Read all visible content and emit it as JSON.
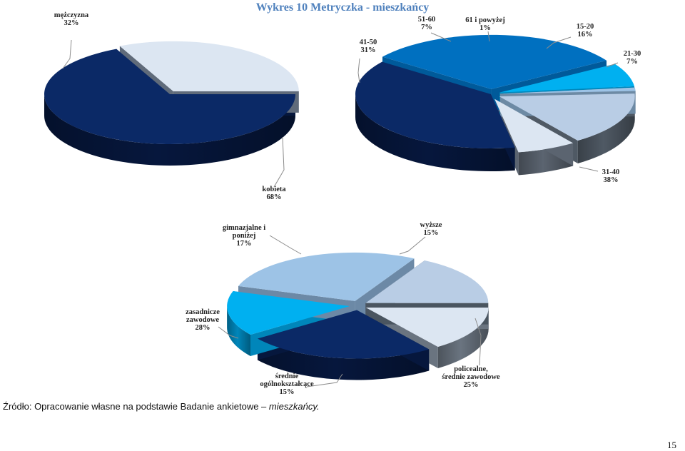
{
  "page": {
    "source_prefix": "Źródło: Opracowanie własne na podstawie Badanie ankietowe – ",
    "source_italic": "mieszkańcy.",
    "page_number": "15"
  },
  "chart_data": [
    {
      "type": "pie",
      "title": "Wykres 10 Metryczka - mieszkańcy",
      "categories": [
        "kobieta",
        "mężczyzna"
      ],
      "values": [
        68,
        32
      ],
      "labels": [
        "68%",
        "32%"
      ],
      "colors": [
        "#0b2966",
        "#dce6f2"
      ],
      "side_colors": [
        "#06173d",
        "#606b7a"
      ],
      "exploded": [
        "mężczyzna"
      ]
    },
    {
      "type": "pie",
      "title": "",
      "categories": [
        "15-20",
        "21-30",
        "31-40",
        "41-50",
        "51-60",
        "61 i powyżej"
      ],
      "values": [
        16,
        7,
        38,
        31,
        7,
        1
      ],
      "labels": [
        "16%",
        "7%",
        "38%",
        "31%",
        "7%",
        "1%"
      ],
      "colors": [
        "#b9cde5",
        "#dce6f2",
        "#0b2966",
        "#0070c0",
        "#00b0f0",
        "#9dc3e6"
      ],
      "side_colors": [
        "#4f5964",
        "#5b6470",
        "#06173d",
        "#005a9a",
        "#0086ba",
        "#6d8aa4"
      ],
      "exploded": [
        "15-20",
        "21-30",
        "41-50",
        "51-60",
        "61 i powyżej"
      ]
    },
    {
      "type": "pie",
      "title": "",
      "categories": [
        "wyższe",
        "policealne, średnie zawodowe",
        "średnie ogólnokształcące",
        "zasadnicze zawodowe",
        "gimnazjalne i poniżej"
      ],
      "values": [
        15,
        25,
        15,
        28,
        17
      ],
      "labels": [
        "15%",
        "25%",
        "15%",
        "28%",
        "17%"
      ],
      "colors": [
        "#dce6f2",
        "#0b2966",
        "#00b0f0",
        "#9dc3e6",
        "#b9cde5"
      ],
      "side_colors": [
        "#6a7480",
        "#06173d",
        "#0086ba",
        "#6c89a6",
        "#4a5560"
      ],
      "exploded": [
        "wyższe",
        "policealne, średnie zawodowe",
        "średnie ogólnokształcące",
        "zasadnicze zawodowe",
        "gimnazjalne i poniżej"
      ]
    }
  ]
}
